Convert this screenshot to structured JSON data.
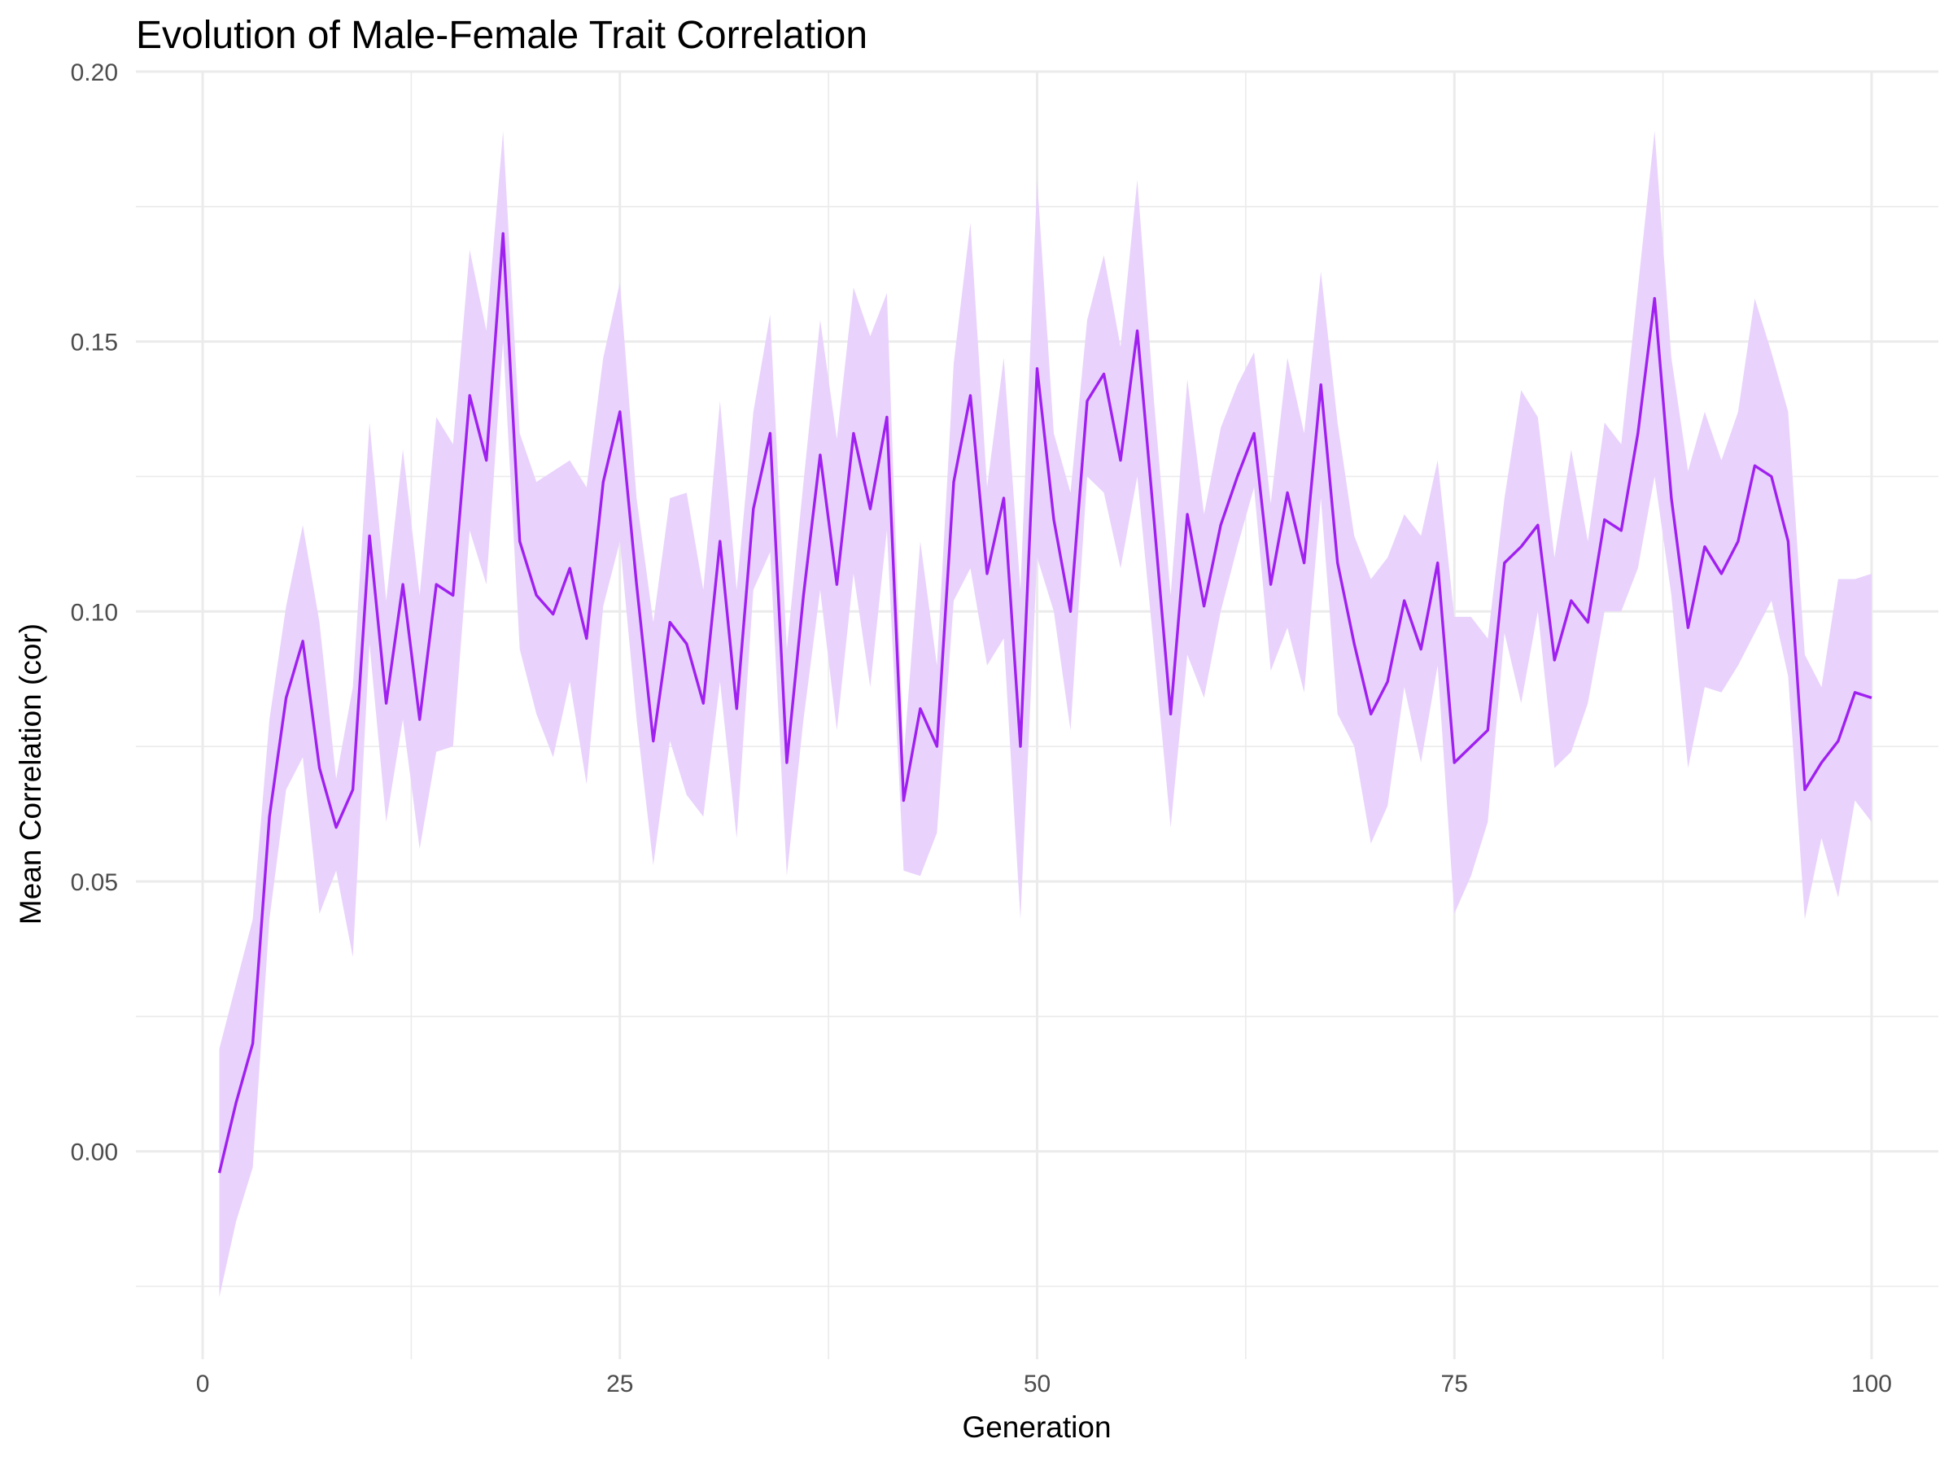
{
  "chart_data": {
    "type": "line",
    "title": "Evolution of Male-Female Trait Correlation",
    "xlabel": "Generation",
    "ylabel": "Mean Correlation (cor)",
    "xlim": [
      -4,
      104
    ],
    "ylim": [
      -0.0385,
      0.2
    ],
    "x_ticks": [
      0,
      25,
      50,
      75,
      100
    ],
    "x_tick_labels": [
      "0",
      "25",
      "50",
      "75",
      "100"
    ],
    "y_ticks": [
      0.0,
      0.05,
      0.1,
      0.15,
      0.2
    ],
    "y_tick_labels": [
      "0.00",
      "0.05",
      "0.10",
      "0.15",
      "0.20"
    ],
    "grid": true,
    "legend": "none",
    "colors": {
      "line": "#a020f0",
      "ribbon": "#e9d3fc"
    },
    "series": [
      {
        "x": [
          1,
          2,
          3,
          4,
          5,
          6,
          7,
          8,
          9,
          10,
          11,
          12,
          13,
          14,
          15,
          16,
          17,
          18,
          19,
          20,
          21,
          22,
          23,
          24,
          25,
          26,
          27,
          28,
          29,
          30,
          31,
          32,
          33,
          34,
          35,
          36,
          37,
          38,
          39,
          40,
          41,
          42,
          43,
          44,
          45,
          46,
          47,
          48,
          49,
          50,
          51,
          52,
          53,
          54,
          55,
          56,
          57,
          58,
          59,
          60,
          61,
          62,
          63,
          64,
          65,
          66,
          67,
          68,
          69,
          70,
          71,
          72,
          73,
          74,
          75,
          76,
          77,
          78,
          79,
          80,
          81,
          82,
          83,
          84,
          85,
          86,
          87,
          88,
          89,
          90,
          91,
          92,
          93,
          94,
          95,
          96,
          97,
          98,
          99,
          100
        ],
        "y": [
          -0.004,
          0.009,
          0.02,
          0.062,
          0.084,
          0.0945,
          0.071,
          0.06,
          0.067,
          0.114,
          0.083,
          0.105,
          0.08,
          0.105,
          0.103,
          0.14,
          0.128,
          0.17,
          0.113,
          0.103,
          0.0995,
          0.108,
          0.095,
          0.124,
          0.137,
          0.105,
          0.076,
          0.098,
          0.094,
          0.083,
          0.113,
          0.082,
          0.119,
          0.133,
          0.072,
          0.103,
          0.129,
          0.105,
          0.133,
          0.119,
          0.136,
          0.065,
          0.082,
          0.075,
          0.124,
          0.14,
          0.107,
          0.121,
          0.075,
          0.145,
          0.117,
          0.1,
          0.139,
          0.144,
          0.128,
          0.152,
          0.117,
          0.081,
          0.118,
          0.101,
          0.116,
          0.125,
          0.133,
          0.105,
          0.122,
          0.109,
          0.142,
          0.109,
          0.094,
          0.081,
          0.087,
          0.102,
          0.093,
          0.109,
          0.072,
          0.075,
          0.078,
          0.109,
          0.112,
          0.116,
          0.091,
          0.102,
          0.098,
          0.117,
          0.115,
          0.133,
          0.158,
          0.121,
          0.097,
          0.112,
          0.107,
          0.113,
          0.127,
          0.125,
          0.113,
          0.067,
          0.072,
          0.076,
          0.085,
          0.084
        ],
        "lower": [
          -0.027,
          -0.013,
          -0.003,
          0.043,
          0.067,
          0.073,
          0.044,
          0.052,
          0.036,
          0.094,
          0.061,
          0.08,
          0.056,
          0.074,
          0.075,
          0.115,
          0.105,
          0.15,
          0.093,
          0.081,
          0.073,
          0.087,
          0.068,
          0.101,
          0.113,
          0.08,
          0.053,
          0.076,
          0.066,
          0.062,
          0.087,
          0.058,
          0.104,
          0.111,
          0.051,
          0.08,
          0.104,
          0.078,
          0.107,
          0.086,
          0.115,
          0.052,
          0.051,
          0.059,
          0.102,
          0.108,
          0.09,
          0.095,
          0.043,
          0.11,
          0.1,
          0.078,
          0.125,
          0.122,
          0.108,
          0.125,
          0.093,
          0.06,
          0.092,
          0.084,
          0.1,
          0.112,
          0.123,
          0.089,
          0.097,
          0.085,
          0.121,
          0.081,
          0.075,
          0.057,
          0.064,
          0.086,
          0.072,
          0.09,
          0.044,
          0.051,
          0.061,
          0.096,
          0.083,
          0.1,
          0.071,
          0.074,
          0.083,
          0.1,
          0.1,
          0.108,
          0.125,
          0.103,
          0.071,
          0.086,
          0.085,
          0.09,
          0.096,
          0.102,
          0.088,
          0.043,
          0.058,
          0.047,
          0.065,
          0.061
        ],
        "upper": [
          0.019,
          0.031,
          0.043,
          0.08,
          0.101,
          0.116,
          0.098,
          0.069,
          0.086,
          0.135,
          0.102,
          0.13,
          0.103,
          0.136,
          0.131,
          0.167,
          0.152,
          0.189,
          0.133,
          0.124,
          0.126,
          0.128,
          0.123,
          0.147,
          0.161,
          0.121,
          0.098,
          0.121,
          0.122,
          0.104,
          0.139,
          0.104,
          0.137,
          0.155,
          0.093,
          0.124,
          0.154,
          0.132,
          0.16,
          0.151,
          0.159,
          0.073,
          0.113,
          0.09,
          0.146,
          0.172,
          0.123,
          0.147,
          0.104,
          0.18,
          0.133,
          0.122,
          0.154,
          0.166,
          0.149,
          0.18,
          0.139,
          0.103,
          0.143,
          0.118,
          0.134,
          0.142,
          0.148,
          0.12,
          0.147,
          0.133,
          0.163,
          0.135,
          0.114,
          0.106,
          0.11,
          0.118,
          0.114,
          0.128,
          0.099,
          0.099,
          0.095,
          0.121,
          0.141,
          0.136,
          0.11,
          0.13,
          0.113,
          0.135,
          0.131,
          0.16,
          0.189,
          0.147,
          0.126,
          0.137,
          0.128,
          0.137,
          0.158,
          0.148,
          0.137,
          0.092,
          0.086,
          0.106,
          0.106,
          0.107
        ]
      }
    ]
  }
}
